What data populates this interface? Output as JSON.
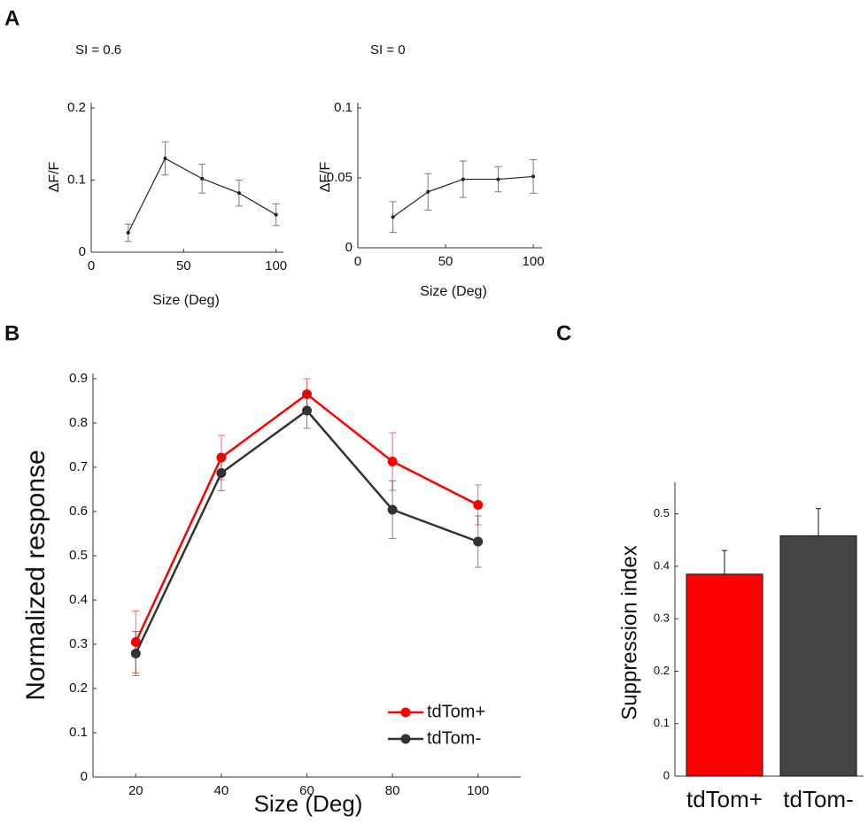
{
  "chart_data": [
    {
      "type": "line",
      "panel": "A",
      "title": "SI = 0.6",
      "x_label": "Size (Deg)",
      "y_label": "ΔF/F",
      "x": [
        20,
        40,
        60,
        80,
        100
      ],
      "xlim": [
        0,
        104
      ],
      "xticks": [
        0,
        50,
        100
      ],
      "ylim": [
        0,
        0.2
      ],
      "yticks": [
        0,
        0.1,
        0.2
      ],
      "series": [
        {
          "color": "#222222",
          "values": [
            0.027,
            0.13,
            0.102,
            0.082,
            0.052
          ],
          "errors": [
            0.012,
            0.023,
            0.02,
            0.018,
            0.015
          ]
        }
      ]
    },
    {
      "type": "line",
      "title": "SI = 0",
      "x_label": "Size (Deg)",
      "y_label": "ΔF/F",
      "x": [
        20,
        40,
        60,
        80,
        100
      ],
      "xlim": [
        0,
        105
      ],
      "xticks": [
        0,
        50,
        100
      ],
      "ylim": [
        0,
        0.1
      ],
      "yticks": [
        0,
        0.05,
        0.1
      ],
      "series": [
        {
          "color": "#222222",
          "values": [
            0.022,
            0.04,
            0.049,
            0.049,
            0.051
          ],
          "errors": [
            0.011,
            0.013,
            0.013,
            0.009,
            0.012
          ]
        }
      ]
    },
    {
      "type": "line",
      "panel": "B",
      "x_label": "Size (Deg)",
      "y_label": "Normalized response",
      "x": [
        20,
        40,
        60,
        80,
        100
      ],
      "xlim": [
        10,
        110
      ],
      "xticks": [
        20,
        40,
        60,
        80,
        100
      ],
      "ylim": [
        0,
        0.9
      ],
      "yticks": [
        0,
        0.1,
        0.2,
        0.3,
        0.4,
        0.5,
        0.6,
        0.7,
        0.8,
        0.9
      ],
      "legend": "lower right",
      "series": [
        {
          "name": "tdTom+",
          "color": "#ff0000",
          "values": [
            0.305,
            0.722,
            0.865,
            0.713,
            0.615
          ],
          "errors": [
            0.07,
            0.05,
            0.035,
            0.065,
            0.045
          ]
        },
        {
          "name": "tdTom-",
          "color": "#333333",
          "values": [
            0.279,
            0.687,
            0.828,
            0.604,
            0.532
          ],
          "errors": [
            0.05,
            0.04,
            0.04,
            0.065,
            0.058
          ]
        }
      ]
    },
    {
      "type": "bar",
      "panel": "C",
      "y_label": "Suppression index",
      "categories": [
        "tdTom+",
        "tdTom-"
      ],
      "values": [
        0.385,
        0.458
      ],
      "errors": [
        0.045,
        0.052
      ],
      "colors": [
        "#ff0000",
        "#444444"
      ],
      "ylim": [
        0,
        0.55
      ],
      "yticks": [
        0,
        0.1,
        0.2,
        0.3,
        0.4,
        0.5
      ]
    }
  ]
}
